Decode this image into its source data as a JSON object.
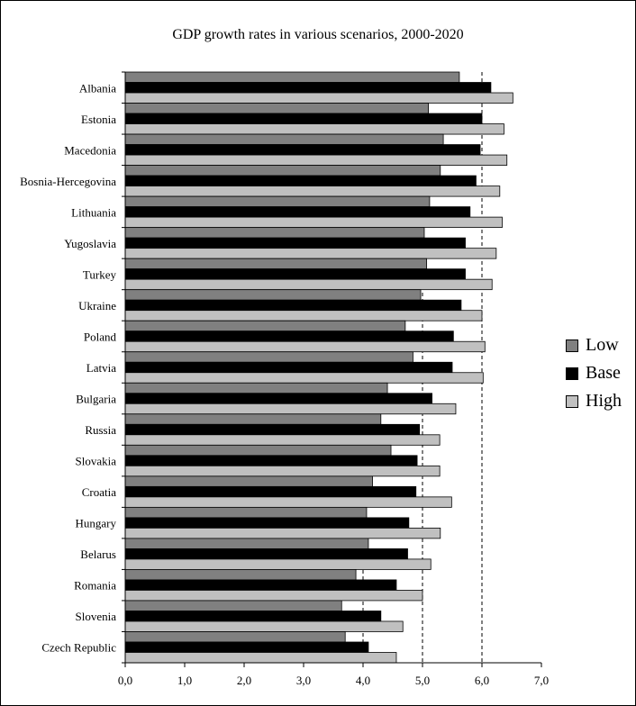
{
  "chart_data": {
    "type": "bar",
    "orientation": "horizontal",
    "title": "GDP growth rates in various scenarios, 2000-2020",
    "xlabel": "",
    "ylabel": "",
    "xlim": [
      0,
      7
    ],
    "x_ticks": [
      "0,0",
      "1,0",
      "2,0",
      "3,0",
      "4,0",
      "5,0",
      "6,0",
      "7,0"
    ],
    "gridlines": "dashed vertical at 4,0, 5,0, 6,0",
    "legend_position": "right",
    "categories": [
      "Albania",
      "Estonia",
      "Macedonia",
      "Bosnia-Hercegovina",
      "Lithuania",
      "Yugoslavia",
      "Turkey",
      "Ukraine",
      "Poland",
      "Latvia",
      "Bulgaria",
      "Russia",
      "Slovakia",
      "Croatia",
      "Hungary",
      "Belarus",
      "Romania",
      "Slovenia",
      "Czech Republic"
    ],
    "series": [
      {
        "name": "Low",
        "color": "#808080",
        "values": [
          5.62,
          5.1,
          5.35,
          5.3,
          5.12,
          5.03,
          5.07,
          4.97,
          4.71,
          4.84,
          4.41,
          4.3,
          4.47,
          4.16,
          4.06,
          4.09,
          3.88,
          3.64,
          3.7
        ]
      },
      {
        "name": "Base",
        "color": "#000000",
        "values": [
          6.15,
          6.0,
          5.97,
          5.9,
          5.8,
          5.72,
          5.72,
          5.65,
          5.52,
          5.5,
          5.16,
          4.95,
          4.91,
          4.89,
          4.77,
          4.75,
          4.56,
          4.3,
          4.09
        ]
      },
      {
        "name": "High",
        "color": "#c0c0c0",
        "values": [
          6.52,
          6.37,
          6.42,
          6.3,
          6.34,
          6.24,
          6.17,
          6.0,
          6.05,
          6.02,
          5.56,
          5.29,
          5.29,
          5.49,
          5.3,
          5.14,
          5.0,
          4.67,
          4.56
        ]
      }
    ]
  }
}
